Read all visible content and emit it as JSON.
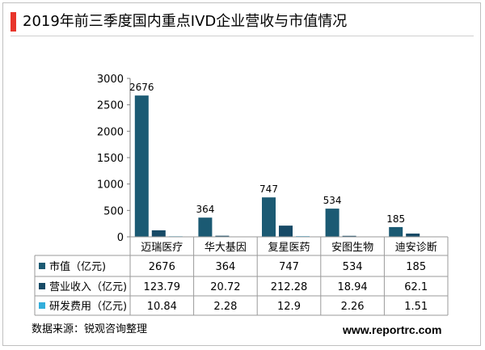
{
  "title": "2019年前三季度国内重点IVD企业营收与市值情况",
  "source": "数据来源：锐观咨询整理",
  "website": "www.reportrc.com",
  "colors": {
    "accent": "#e8352b",
    "series": [
      "#1b5a73",
      "#174a66",
      "#33aedb"
    ]
  },
  "chart_data": {
    "type": "bar",
    "categories": [
      "迈瑞医疗",
      "华大基因",
      "复星医药",
      "安图生物",
      "迪安诊断"
    ],
    "series": [
      {
        "name": "市值（亿元)",
        "values": [
          2676,
          364,
          747,
          534,
          185
        ],
        "table": [
          "2676",
          "364",
          "747",
          "534",
          "185"
        ],
        "labels": [
          "2676",
          "364",
          "747",
          "534",
          "185"
        ]
      },
      {
        "name": "营业收入（亿元)",
        "values": [
          123.79,
          20.72,
          212.28,
          18.94,
          62.1
        ],
        "table": [
          "123.79",
          "20.72",
          "212.28",
          "18.94",
          "62.1"
        ]
      },
      {
        "name": "研发费用（亿元)",
        "values": [
          10.84,
          2.28,
          12.9,
          2.26,
          1.51
        ],
        "table": [
          "10.84",
          "2.28",
          "12.9",
          "2.26",
          "1.51"
        ]
      }
    ],
    "yticks": [
      "0",
      "500",
      "1000",
      "1500",
      "2000",
      "2500",
      "3000"
    ],
    "ylim": [
      0,
      3000
    ],
    "legend": "data-table"
  }
}
